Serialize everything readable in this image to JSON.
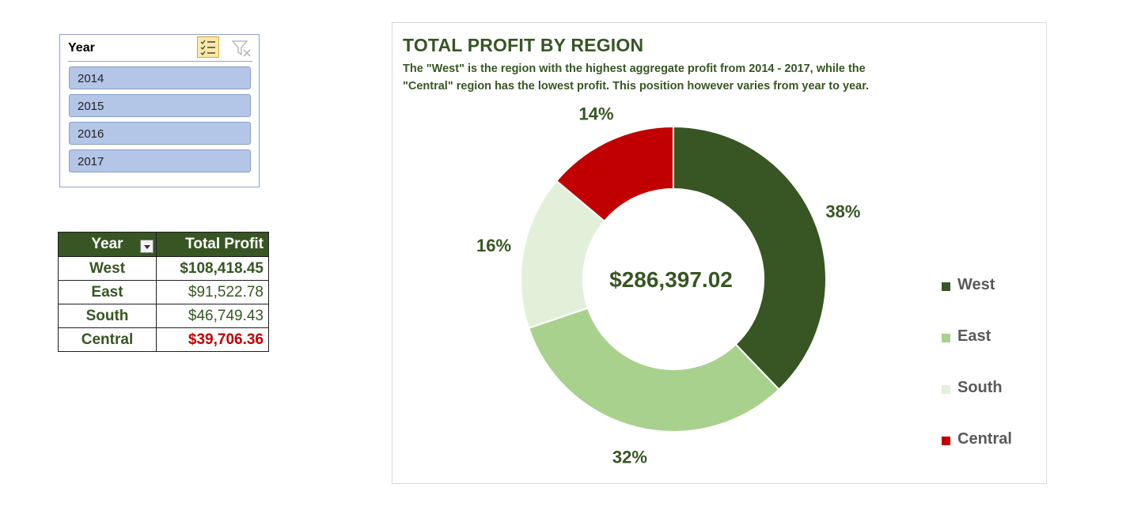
{
  "slicer": {
    "title": "Year",
    "items": [
      "2014",
      "2015",
      "2016",
      "2017"
    ],
    "multi_select_icon": "multi-select-icon",
    "clear_filter_icon": "clear-filter-icon"
  },
  "table": {
    "headers": [
      "Year",
      "Total Profit"
    ],
    "rows": [
      {
        "region": "West",
        "profit": "$108,418.45"
      },
      {
        "region": "East",
        "profit": "$91,522.78"
      },
      {
        "region": "South",
        "profit": "$46,749.43"
      },
      {
        "region": "Central",
        "profit": "$39,706.36"
      }
    ],
    "colors": {
      "header_bg": "#375623",
      "text": "#375623",
      "lowest": "#c00000"
    }
  },
  "chart_data": {
    "type": "pie",
    "title": "TOTAL PROFIT BY REGION",
    "subtitle_lines": [
      "The \"West\" is the region with the highest aggregate profit from 2014 - 2017, while the",
      "\"Central\" region has the lowest profit. This position however varies from year to year."
    ],
    "center_label": "$286,397.02",
    "categories": [
      "West",
      "East",
      "South",
      "Central"
    ],
    "values": [
      108418.45,
      91522.78,
      46749.43,
      39706.36
    ],
    "percent_labels": [
      "38%",
      "32%",
      "16%",
      "14%"
    ],
    "colors": [
      "#375623",
      "#a9d18e",
      "#e2f0d9",
      "#c00000"
    ],
    "legend_position": "right"
  }
}
